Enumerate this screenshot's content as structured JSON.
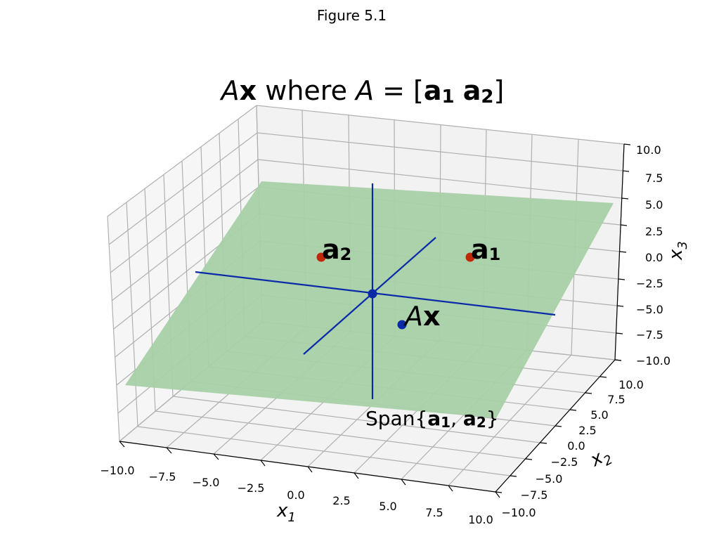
{
  "window": {
    "figure_label": "Figure 5.1"
  },
  "chart_data": {
    "type": "3d-plane",
    "title": {
      "prefix_italic": "A",
      "prefix_bold": "x",
      "middle": " where ",
      "A_italic": "A",
      "eq": " = [",
      "a1_bold": "a",
      "a1_sub": "1",
      "a2_bold": "a",
      "a2_sub": "2",
      "close": "]"
    },
    "xlabel": {
      "base": "x",
      "sub": "1"
    },
    "ylabel": {
      "base": "x",
      "sub": "2"
    },
    "zlabel": {
      "base": "x",
      "sub": "3"
    },
    "xlim": [
      -10,
      10
    ],
    "ylim": [
      -10,
      10
    ],
    "zlim": [
      -10,
      10
    ],
    "xticks": [
      "−10.0",
      "−7.5",
      "−5.0",
      "−2.5",
      "0.0",
      "2.5",
      "5.0",
      "7.5",
      "10.0"
    ],
    "yticks": [
      "−10.0",
      "−7.5",
      "−5.0",
      "−2.5",
      "0.0",
      "2.5",
      "5.0",
      "7.5",
      "10.0"
    ],
    "zticks": [
      "−10.0",
      "−7.5",
      "−5.0",
      "−2.5",
      "0.0",
      "2.5",
      "5.0",
      "7.5",
      "10.0"
    ],
    "plane_label": {
      "prefix": "Span{",
      "a1_bold": "a",
      "a1_sub": "1",
      "sep": ", ",
      "a2_bold": "a",
      "a2_sub": "2",
      "suffix": "}"
    },
    "points": [
      {
        "name": "a1",
        "label_bold": "a",
        "label_sub": "1",
        "color": "#c0280a"
      },
      {
        "name": "a2",
        "label_bold": "a",
        "label_sub": "2",
        "color": "#c0280a"
      },
      {
        "name": "Ax",
        "label_italic": "A",
        "label_bold": "x",
        "color": "#0a2aa8"
      },
      {
        "name": "origin",
        "color": "#0a2aa8"
      }
    ],
    "colors": {
      "plane": "#a8d0a8",
      "axes_lines": "#0a2aa8",
      "points_red": "#c0280a",
      "points_blue": "#0a2aa8"
    },
    "grid": true
  }
}
